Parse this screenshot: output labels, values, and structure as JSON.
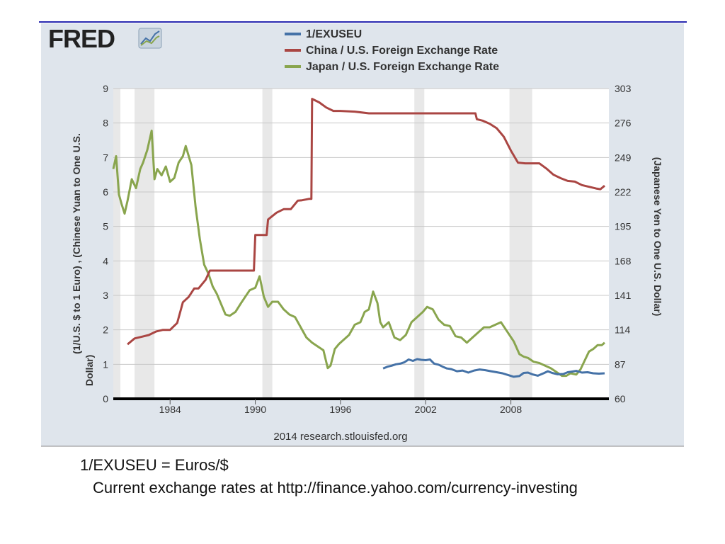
{
  "fred_logo": "FRED",
  "source": "2014 research.stlouisfed.org",
  "captions": {
    "line1": "1/EXUSEU = Euros/$",
    "line2": "Current exchange rates at http://finance.yahoo.com/currency-investing"
  },
  "colors": {
    "panel": "#dfe5ec",
    "plot_bg": "#ffffff",
    "recession": "#e8e8e8",
    "grid": "#c8c8c8",
    "text": "#333333",
    "accent_line": "#2a2ab0"
  },
  "chart_data": {
    "type": "line",
    "title": "",
    "xlabel": "",
    "ylabel_left": "(1/U.S. $ to 1 Euro) , (Chinese Yuan to One U.S. Dollar)",
    "ylabel_right": "(Japanese Yen to One U.S. Dollar)",
    "xlim": [
      1980.0,
      2014.9
    ],
    "x_ticks": [
      1984,
      1990,
      1996,
      2002,
      2008
    ],
    "ylim_left": [
      0,
      9
    ],
    "y_ticks_left": [
      0,
      1,
      2,
      3,
      4,
      5,
      6,
      7,
      8,
      9
    ],
    "ylim_right": [
      60,
      303
    ],
    "y_ticks_right": [
      60,
      87,
      114,
      141,
      168,
      195,
      222,
      249,
      276,
      303
    ],
    "grid": true,
    "legend_position": "top",
    "recessions": [
      [
        1980.0,
        1980.5
      ],
      [
        1981.5,
        1982.9
      ],
      [
        1990.5,
        1991.2
      ],
      [
        2001.2,
        2001.9
      ],
      [
        2007.9,
        2009.5
      ]
    ],
    "series": [
      {
        "name": "1/EXUSEU",
        "axis": "left",
        "color": "#4572a7",
        "x": [
          1999.0,
          1999.3,
          1999.6,
          1999.9,
          2000.2,
          2000.5,
          2000.8,
          2001.1,
          2001.4,
          2001.7,
          2002.0,
          2002.3,
          2002.6,
          2002.9,
          2003.2,
          2003.5,
          2003.8,
          2004.2,
          2004.6,
          2005.0,
          2005.4,
          2005.8,
          2006.2,
          2006.6,
          2007.0,
          2007.4,
          2007.8,
          2008.2,
          2008.6,
          2008.9,
          2009.2,
          2009.5,
          2009.9,
          2010.3,
          2010.6,
          2010.9,
          2011.3,
          2011.7,
          2012.0,
          2012.3,
          2012.6,
          2013.0,
          2013.4,
          2013.8,
          2014.2,
          2014.6
        ],
        "values": [
          0.88,
          0.93,
          0.96,
          1.0,
          1.02,
          1.06,
          1.14,
          1.1,
          1.15,
          1.13,
          1.12,
          1.14,
          1.02,
          0.99,
          0.93,
          0.88,
          0.86,
          0.8,
          0.82,
          0.76,
          0.82,
          0.85,
          0.83,
          0.8,
          0.77,
          0.74,
          0.69,
          0.64,
          0.66,
          0.75,
          0.76,
          0.71,
          0.67,
          0.74,
          0.8,
          0.75,
          0.71,
          0.72,
          0.77,
          0.79,
          0.81,
          0.76,
          0.77,
          0.74,
          0.73,
          0.74
        ]
      },
      {
        "name": "China / U.S. Foreign Exchange Rate",
        "axis": "left",
        "color": "#aa4643",
        "x": [
          1981.0,
          1981.5,
          1982.0,
          1982.5,
          1983.0,
          1983.5,
          1984.0,
          1984.5,
          1984.9,
          1985.3,
          1985.7,
          1986.0,
          1986.5,
          1986.8,
          1987.0,
          1988.0,
          1989.0,
          1989.9,
          1990.0,
          1990.8,
          1990.9,
          1991.5,
          1992.0,
          1992.5,
          1993.0,
          1993.3,
          1993.8,
          1993.95,
          1994.0,
          1994.5,
          1995.0,
          1995.5,
          1996.0,
          1997.0,
          1998.0,
          1999.0,
          2000.0,
          2002.0,
          2004.0,
          2005.5,
          2005.6,
          2006.0,
          2006.5,
          2007.0,
          2007.5,
          2008.0,
          2008.5,
          2009.0,
          2010.0,
          2010.5,
          2011.0,
          2011.5,
          2012.0,
          2012.5,
          2013.0,
          2013.5,
          2014.0,
          2014.3,
          2014.6
        ],
        "values": [
          1.58,
          1.75,
          1.8,
          1.85,
          1.95,
          2.0,
          2.0,
          2.2,
          2.8,
          2.95,
          3.2,
          3.2,
          3.45,
          3.72,
          3.72,
          3.72,
          3.72,
          3.72,
          4.75,
          4.75,
          5.2,
          5.4,
          5.5,
          5.5,
          5.75,
          5.76,
          5.8,
          5.8,
          8.7,
          8.6,
          8.45,
          8.35,
          8.35,
          8.33,
          8.28,
          8.28,
          8.28,
          8.28,
          8.28,
          8.28,
          8.11,
          8.07,
          7.98,
          7.85,
          7.6,
          7.2,
          6.85,
          6.83,
          6.83,
          6.68,
          6.5,
          6.4,
          6.32,
          6.3,
          6.2,
          6.15,
          6.1,
          6.08,
          6.18
        ]
      },
      {
        "name": "Japan / U.S. Foreign Exchange Rate",
        "axis": "right",
        "color": "#89a54e",
        "x": [
          1980.0,
          1980.2,
          1980.4,
          1980.6,
          1980.8,
          1981.0,
          1981.3,
          1981.6,
          1981.9,
          1982.1,
          1982.4,
          1982.7,
          1982.9,
          1983.1,
          1983.4,
          1983.7,
          1984.0,
          1984.3,
          1984.6,
          1984.9,
          1985.1,
          1985.5,
          1985.8,
          1986.1,
          1986.4,
          1986.7,
          1987.0,
          1987.3,
          1987.6,
          1987.9,
          1988.2,
          1988.6,
          1989.0,
          1989.3,
          1989.6,
          1990.0,
          1990.3,
          1990.6,
          1990.9,
          1991.2,
          1991.6,
          1992.0,
          1992.4,
          1992.8,
          1993.2,
          1993.6,
          1994.0,
          1994.4,
          1994.8,
          1995.1,
          1995.3,
          1995.6,
          1995.9,
          1996.2,
          1996.6,
          1997.0,
          1997.4,
          1997.7,
          1998.0,
          1998.3,
          1998.6,
          1998.8,
          1999.0,
          1999.4,
          1999.8,
          2000.2,
          2000.6,
          2001.0,
          2001.4,
          2001.8,
          2002.1,
          2002.5,
          2002.9,
          2003.3,
          2003.7,
          2004.1,
          2004.5,
          2004.9,
          2005.3,
          2005.7,
          2006.1,
          2006.5,
          2006.9,
          2007.3,
          2007.6,
          2007.9,
          2008.2,
          2008.6,
          2008.9,
          2009.2,
          2009.6,
          2010.0,
          2010.4,
          2010.8,
          2011.2,
          2011.6,
          2011.9,
          2012.2,
          2012.6,
          2012.9,
          2013.2,
          2013.5,
          2013.8,
          2014.1,
          2014.4,
          2014.6
        ],
        "values": [
          240,
          250,
          220,
          212,
          205,
          215,
          232,
          225,
          240,
          245,
          255,
          270,
          232,
          240,
          235,
          242,
          230,
          233,
          245,
          250,
          258,
          243,
          210,
          185,
          165,
          158,
          148,
          142,
          134,
          126,
          125,
          128,
          135,
          140,
          145,
          147,
          156,
          140,
          132,
          136,
          136,
          130,
          126,
          124,
          116,
          108,
          104,
          101,
          98,
          84,
          86,
          99,
          103,
          106,
          110,
          118,
          120,
          128,
          130,
          144,
          135,
          120,
          116,
          120,
          108,
          106,
          110,
          120,
          124,
          128,
          132,
          130,
          122,
          118,
          117,
          109,
          108,
          104,
          108,
          112,
          116,
          116,
          118,
          120,
          115,
          110,
          105,
          95,
          93,
          92,
          89,
          88,
          86,
          84,
          81,
          78,
          78,
          80,
          79,
          83,
          90,
          97,
          99,
          102,
          102,
          104
        ]
      }
    ]
  }
}
